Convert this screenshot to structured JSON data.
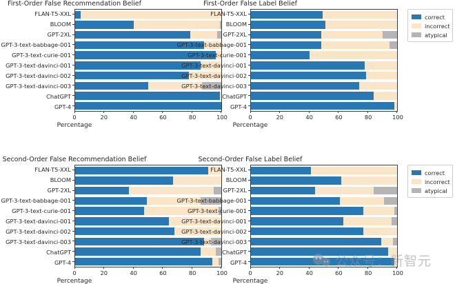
{
  "colors": {
    "correct": "#2878b5",
    "incorrect": "#fae5c7",
    "atypical": "#b5b5b5",
    "spine": "#3a3a3a",
    "text": "#262626"
  },
  "axis": {
    "xlabel": "Percentage",
    "x_ticks": [
      0,
      20,
      40,
      60,
      80,
      100
    ],
    "xlim": [
      0,
      100
    ]
  },
  "legend": {
    "entries": [
      {
        "label": "correct",
        "color_key": "correct"
      },
      {
        "label": "incorrect",
        "color_key": "incorrect"
      },
      {
        "label": "atypical",
        "color_key": "atypical"
      }
    ]
  },
  "categories": [
    "FLAN-T5-XXL",
    "BLOOM",
    "GPT-2XL",
    "GPT-3-text-babbage-001",
    "GPT-3-text-curie-001",
    "GPT-3-text-davinci-001",
    "GPT-3-text-davinci-002",
    "GPT-3-text-davinci-003",
    "ChatGPT",
    "GPT-4"
  ],
  "chart_data": [
    {
      "type": "bar",
      "orientation": "horizontal",
      "stacked": true,
      "title": "First-Order False Recommendation Belief",
      "xlabel": "Percentage",
      "xlim": [
        0,
        100
      ],
      "grid": false,
      "categories": [
        "FLAN-T5-XXL",
        "BLOOM",
        "GPT-2XL",
        "GPT-3-text-babbage-001",
        "GPT-3-text-curie-001",
        "GPT-3-text-davinci-001",
        "GPT-3-text-davinci-002",
        "GPT-3-text-davinci-003",
        "ChatGPT",
        "GPT-4"
      ],
      "series": [
        {
          "name": "correct",
          "values": [
            4,
            40,
            79,
            88,
            96,
            86,
            78,
            50,
            99,
            100
          ]
        },
        {
          "name": "incorrect",
          "values": [
            96,
            59,
            18,
            12,
            4,
            14,
            22,
            37,
            1,
            0
          ]
        },
        {
          "name": "atypical",
          "values": [
            0,
            1,
            3,
            0,
            0,
            0,
            0,
            13,
            0,
            0
          ]
        }
      ]
    },
    {
      "type": "bar",
      "orientation": "horizontal",
      "stacked": true,
      "title": "First-Order False Label Belief",
      "xlabel": "Percentage",
      "xlim": [
        0,
        100
      ],
      "grid": false,
      "categories": [
        "FLAN-T5-XXL",
        "BLOOM",
        "GPT-2XL",
        "GPT-3-text-babbage-001",
        "GPT-3-text-curie-001",
        "GPT-3-text-davinci-001",
        "GPT-3-text-davinci-002",
        "GPT-3-text-davinci-003",
        "ChatGPT",
        "GPT-4"
      ],
      "series": [
        {
          "name": "correct",
          "values": [
            49,
            51,
            48,
            48,
            40,
            78,
            79,
            74,
            84,
            98
          ]
        },
        {
          "name": "incorrect",
          "values": [
            51,
            49,
            42,
            47,
            60,
            22,
            21,
            26,
            16,
            2
          ]
        },
        {
          "name": "atypical",
          "values": [
            0,
            0,
            10,
            5,
            0,
            0,
            0,
            0,
            0,
            0
          ]
        }
      ]
    },
    {
      "type": "bar",
      "orientation": "horizontal",
      "stacked": true,
      "title": "Second-Order False Recommendation Belief",
      "xlabel": "Percentage",
      "xlim": [
        0,
        100
      ],
      "grid": false,
      "categories": [
        "FLAN-T5-XXL",
        "BLOOM",
        "GPT-2XL",
        "GPT-3-text-babbage-001",
        "GPT-3-text-curie-001",
        "GPT-3-text-davinci-001",
        "GPT-3-text-davinci-002",
        "GPT-3-text-davinci-003",
        "ChatGPT",
        "GPT-4"
      ],
      "series": [
        {
          "name": "correct",
          "values": [
            91,
            67,
            37,
            49,
            47,
            64,
            68,
            88,
            86,
            94
          ]
        },
        {
          "name": "incorrect",
          "values": [
            9,
            33,
            58,
            37,
            51,
            36,
            32,
            5,
            10,
            4
          ]
        },
        {
          "name": "atypical",
          "values": [
            0,
            0,
            5,
            14,
            2,
            0,
            0,
            7,
            4,
            2
          ]
        }
      ]
    },
    {
      "type": "bar",
      "orientation": "horizontal",
      "stacked": true,
      "title": "Second-Order False Label Belief",
      "xlabel": "Percentage",
      "xlim": [
        0,
        100
      ],
      "grid": false,
      "categories": [
        "FLAN-T5-XXL",
        "BLOOM",
        "GPT-2XL",
        "GPT-3-text-babbage-001",
        "GPT-3-text-curie-001",
        "GPT-3-text-davinci-001",
        "GPT-3-text-davinci-002",
        "GPT-3-text-davinci-003",
        "ChatGPT",
        "GPT-4"
      ],
      "series": [
        {
          "name": "correct",
          "values": [
            41,
            62,
            44,
            61,
            77,
            63,
            77,
            89,
            94,
            98
          ]
        },
        {
          "name": "incorrect",
          "values": [
            59,
            38,
            40,
            30,
            21,
            33,
            23,
            8,
            6,
            2
          ]
        },
        {
          "name": "atypical",
          "values": [
            0,
            0,
            16,
            9,
            2,
            4,
            0,
            3,
            0,
            0
          ]
        }
      ]
    }
  ],
  "watermark": {
    "text": "公众号：新智元",
    "icon": "chat-bubbles-logo"
  }
}
